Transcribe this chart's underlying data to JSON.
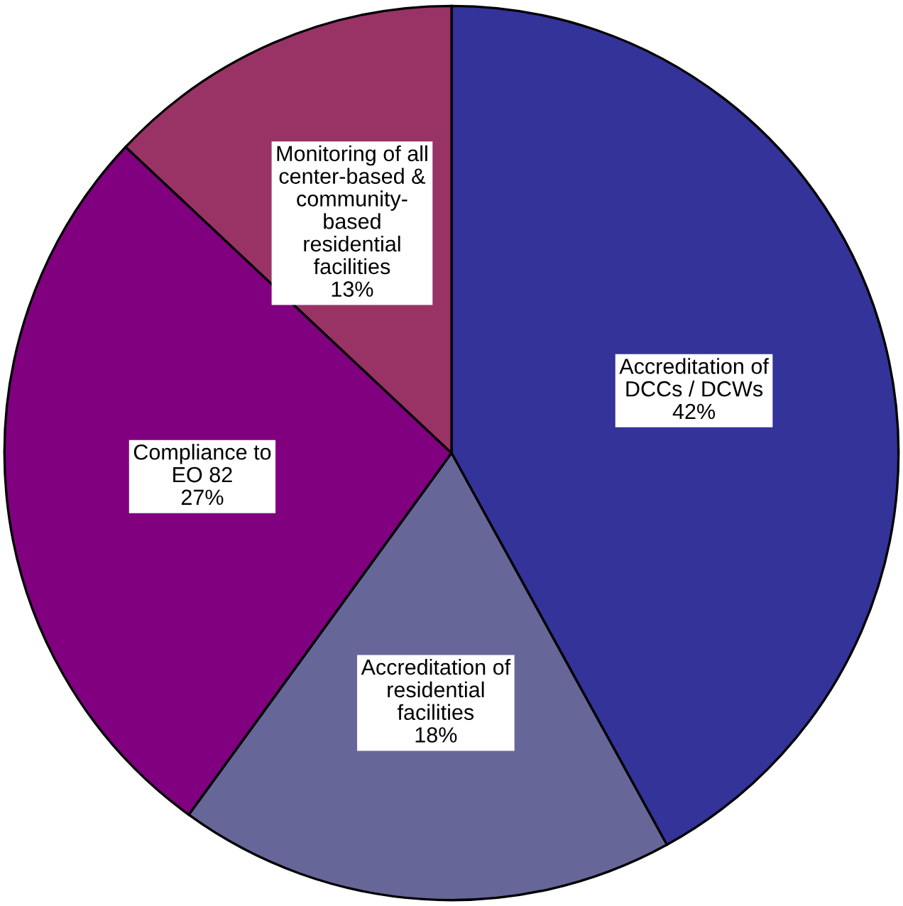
{
  "chart_data": {
    "type": "pie",
    "categories": [
      "Accreditation of\nDCCs / DCWs",
      "Accreditation of\nresidential\nfacilities",
      "Compliance to\nEO 82",
      "Monitoring of all\ncenter-based &\ncommunity-\nbased\nresidential\nfacilities"
    ],
    "values": [
      42,
      18,
      27,
      13
    ],
    "value_labels": [
      "42%",
      "18%",
      "27%",
      "13%"
    ],
    "colors": [
      "#333399",
      "#666699",
      "#800080",
      "#993366"
    ]
  }
}
